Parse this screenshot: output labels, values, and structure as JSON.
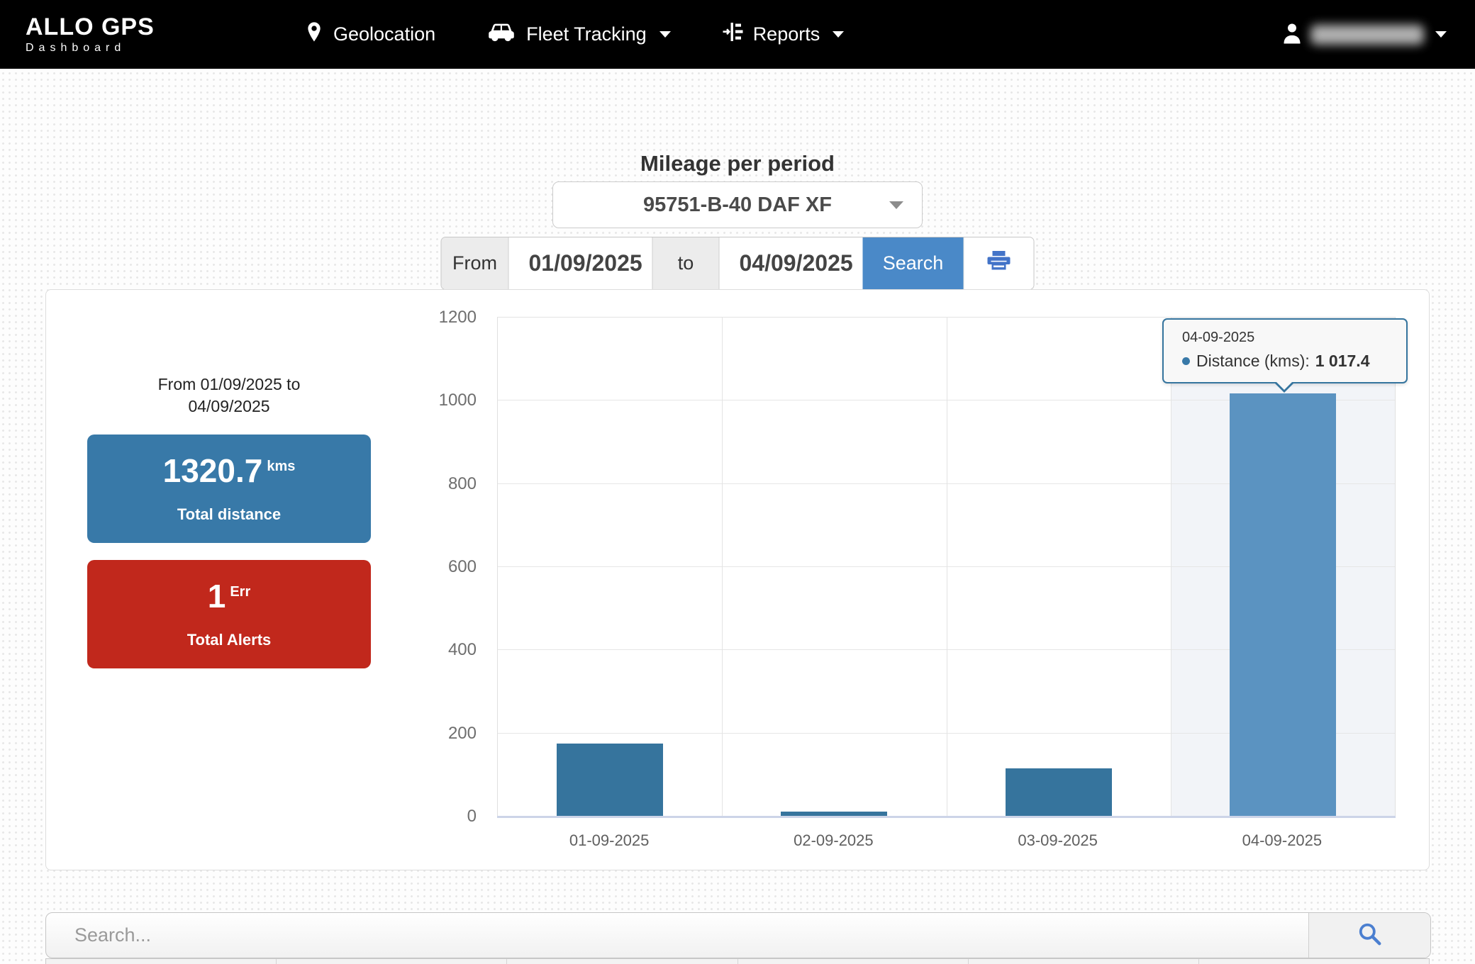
{
  "navbar": {
    "brand": "ALLO GPS",
    "brand_sub": "Dashboard",
    "items": [
      {
        "label": "Geolocation",
        "icon": "location-pin-icon"
      },
      {
        "label": "Fleet Tracking",
        "icon": "car-icon",
        "has_caret": true
      },
      {
        "label": "Reports",
        "icon": "report-list-icon",
        "has_caret": true
      }
    ],
    "user": {
      "icon": "person-icon",
      "name_obscured": true
    }
  },
  "page": {
    "title": "Mileage per period"
  },
  "vehicle_select": {
    "value": "95751-B-40 DAF XF"
  },
  "date_filter": {
    "from_label": "From",
    "from_value": "01/09/2025",
    "to_label": "to",
    "to_value": "04/09/2025",
    "search_label": "Search",
    "print_icon": "printer-icon"
  },
  "summary": {
    "period_text": "From 01/09/2025 to 04/09/2025",
    "total_distance": {
      "value": "1320.7",
      "unit": "kms",
      "label": "Total distance",
      "color": "#3879a8"
    },
    "total_alerts": {
      "value": "1",
      "unit": "Err",
      "label": "Total Alerts",
      "color": "#c1281c"
    }
  },
  "tooltip": {
    "date": "04-09-2025",
    "series_label": "Distance (kms):",
    "value": "1 017.4"
  },
  "search_bar": {
    "placeholder": "Search...",
    "icon": "magnifier-icon"
  },
  "chart_data": {
    "type": "bar",
    "categories": [
      "01-09-2025",
      "02-09-2025",
      "03-09-2025",
      "04-09-2025"
    ],
    "series": [
      {
        "name": "Distance (kms)",
        "values": [
          175.8,
          12.4,
          115.1,
          1017.4
        ]
      }
    ],
    "title": "",
    "xlabel": "",
    "ylabel": "",
    "ylim": [
      0,
      1200
    ],
    "yticks": [
      0,
      200,
      400,
      600,
      800,
      1000,
      1200
    ],
    "grid": true,
    "legend": "none",
    "bar_color": "#36749d",
    "active_bar_color": "#5b93c1",
    "active_column_bg": "#f2f4f8",
    "hover_index": 3
  }
}
